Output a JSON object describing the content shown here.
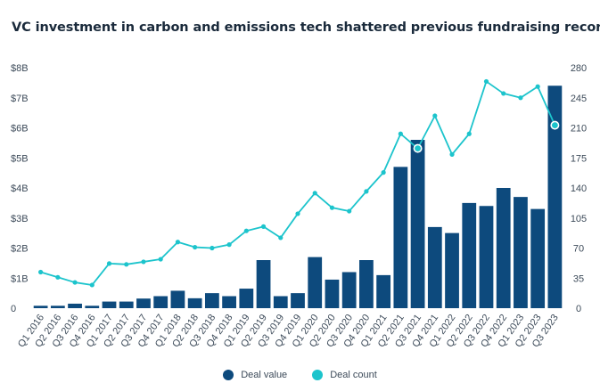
{
  "chart_data": {
    "type": "bar+line",
    "title": "VC investment in carbon and emissions tech shattered previous fundraising record",
    "categories": [
      "Q1 2016",
      "Q2 2016",
      "Q3 2016",
      "Q4 2016",
      "Q1 2017",
      "Q2 2017",
      "Q3 2017",
      "Q4 2017",
      "Q1 2018",
      "Q2 2018",
      "Q3 2018",
      "Q4 2018",
      "Q1 2019",
      "Q2 2019",
      "Q3 2019",
      "Q4 2019",
      "Q1 2020",
      "Q2 2020",
      "Q3 2020",
      "Q4 2020",
      "Q1 2021",
      "Q2 2021",
      "Q3 2021",
      "Q4 2021",
      "Q1 2022",
      "Q2 2022",
      "Q3 2022",
      "Q4 2022",
      "Q1 2023",
      "Q2 2023",
      "Q3 2023"
    ],
    "series": [
      {
        "name": "Deal value",
        "type": "bar",
        "axis": "left",
        "color": "#0d4a7d",
        "values": [
          0.08,
          0.08,
          0.15,
          0.08,
          0.22,
          0.22,
          0.32,
          0.4,
          0.58,
          0.33,
          0.5,
          0.4,
          0.65,
          1.6,
          0.4,
          0.5,
          1.7,
          0.95,
          1.2,
          1.6,
          1.1,
          4.7,
          5.6,
          2.7,
          2.5,
          3.5,
          3.4,
          4.0,
          3.7,
          3.3,
          7.4
        ]
      },
      {
        "name": "Deal count",
        "type": "line",
        "axis": "right",
        "color": "#1cc4cc",
        "values": [
          42,
          36,
          30,
          27,
          52,
          51,
          54,
          57,
          77,
          71,
          70,
          74,
          90,
          95,
          82,
          110,
          134,
          117,
          113,
          136,
          158,
          203,
          186,
          224,
          179,
          203,
          264,
          250,
          245,
          258,
          213
        ]
      }
    ],
    "y_left": {
      "min": 0,
      "max": 8,
      "ticks": [
        0,
        1,
        2,
        3,
        4,
        5,
        6,
        7,
        8
      ],
      "tick_labels": [
        "0",
        "$1B",
        "$2B",
        "$3B",
        "$4B",
        "$5B",
        "$6B",
        "$7B",
        "$8B"
      ]
    },
    "y_right": {
      "min": 0,
      "max": 280,
      "ticks": [
        0,
        35,
        70,
        105,
        140,
        175,
        210,
        245,
        280
      ],
      "tick_labels": [
        "0",
        "35",
        "70",
        "105",
        "140",
        "175",
        "210",
        "245",
        "280"
      ]
    },
    "highlighted_points": [
      22,
      30
    ],
    "grid": false,
    "legend_position": "bottom-center"
  }
}
